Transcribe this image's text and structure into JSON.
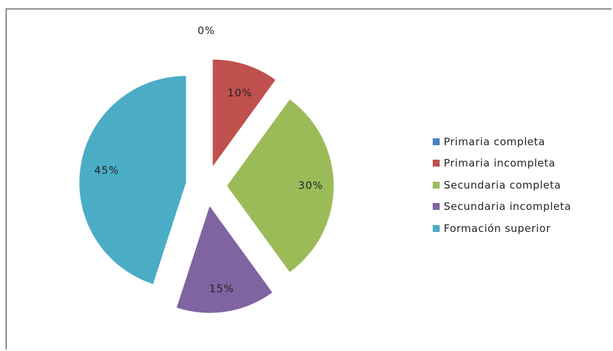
{
  "chart_data": {
    "type": "pie",
    "title": "",
    "categories": [
      "Primaria completa",
      "Primaria incompleta",
      "Secundaria completa",
      "Secundaria incompleta",
      "Formación superior"
    ],
    "values": [
      0,
      10,
      30,
      15,
      45
    ],
    "value_labels": [
      "0%",
      "10%",
      "30%",
      "15%",
      "45%"
    ],
    "colors": [
      "#4f81bd",
      "#c0504d",
      "#9bbb59",
      "#8064a2",
      "#4bacc6"
    ],
    "exploded": true,
    "legend_position": "right"
  }
}
